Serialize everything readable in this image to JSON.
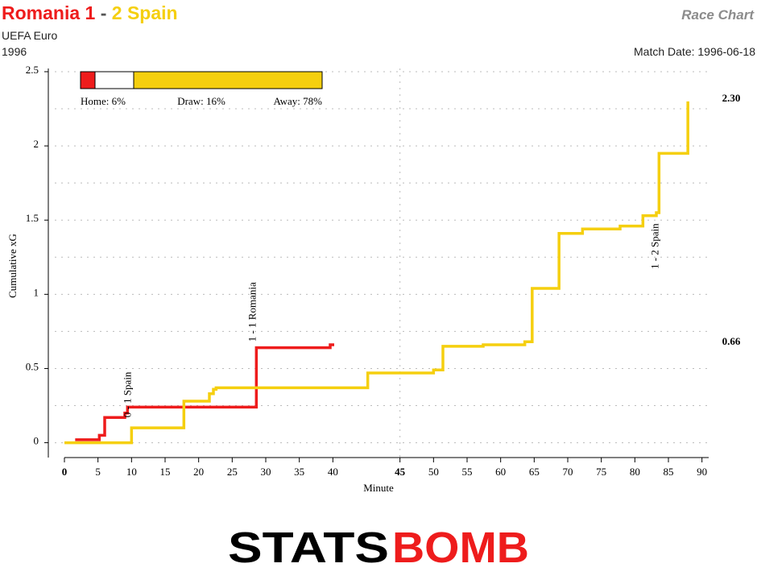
{
  "chart_data": {
    "type": "step",
    "title_parts": [
      "Romania 1",
      "-",
      "2 Spain"
    ],
    "competition": "UEFA Euro",
    "season": "1996",
    "chart_label": "Race Chart",
    "match_date": "Match Date: 1996-06-18",
    "x_label": "Minute",
    "y_label": "Cumulative xG",
    "xlim": [
      0,
      96
    ],
    "xticks": [
      0,
      5,
      10,
      15,
      20,
      25,
      30,
      35,
      40,
      {
        "value": 50,
        "label": "45"
      },
      {
        "value": 55,
        "label": "50"
      },
      {
        "value": 60,
        "label": "55"
      },
      {
        "value": 65,
        "label": "60"
      },
      {
        "value": 70,
        "label": "65"
      },
      {
        "value": 75,
        "label": "70"
      },
      {
        "value": 80,
        "label": "75"
      },
      {
        "value": 85,
        "label": "80"
      },
      {
        "value": 90,
        "label": "85"
      },
      {
        "value": 95,
        "label": "90"
      }
    ],
    "halftime": 50,
    "ylim": [
      -0.1,
      2.5
    ],
    "yticks": [
      0,
      0.5,
      1,
      1.5,
      2,
      2.5
    ],
    "yminor": [
      0.25,
      0.75,
      1.25,
      1.75,
      2.25
    ],
    "grid": true,
    "series": [
      {
        "name": "Romania",
        "color": "#ee1c1c",
        "x": [
          1.6,
          5.2,
          6.0,
          9.0,
          9.4,
          28.6,
          39.6,
          40.2
        ],
        "values": [
          0.02,
          0.05,
          0.17,
          0.2,
          0.24,
          0.64,
          0.66,
          0.66
        ],
        "end_label": "0.66"
      },
      {
        "name": "Spain",
        "color": "#f5cf0f",
        "x": [
          0,
          10.0,
          17.8,
          21.6,
          22.2,
          22.6,
          45.2,
          55.0,
          56.4,
          62.4,
          68.6,
          69.7,
          73.7,
          77.2,
          82.8,
          86.2,
          88.2,
          88.6,
          92.9
        ],
        "values": [
          0,
          0.1,
          0.28,
          0.33,
          0.36,
          0.37,
          0.47,
          0.49,
          0.65,
          0.66,
          0.68,
          1.04,
          1.41,
          1.44,
          1.46,
          1.53,
          1.55,
          1.95,
          2.3
        ],
        "end_label": "2.30"
      }
    ],
    "annotations": [
      {
        "text": "0 - 1 Spain",
        "x": 9.4,
        "y": 0.17,
        "series": 1
      },
      {
        "text": "1 - 1 Romania",
        "x": 28.0,
        "y": 0.68,
        "series": 0
      },
      {
        "text": "1 - 2 Spain",
        "x": 88.0,
        "y": 1.17,
        "series": 1
      }
    ],
    "probabilities": [
      {
        "value": 6,
        "label": "Home: 6%",
        "color": "#ee1c1c"
      },
      {
        "value": 16,
        "label": "Draw: 16%",
        "color": "#ffffff"
      },
      {
        "value": 78,
        "label": "Away: 78%",
        "color": "#f5cf0f"
      }
    ],
    "logo_parts": [
      "STATS",
      "BOMB"
    ]
  }
}
